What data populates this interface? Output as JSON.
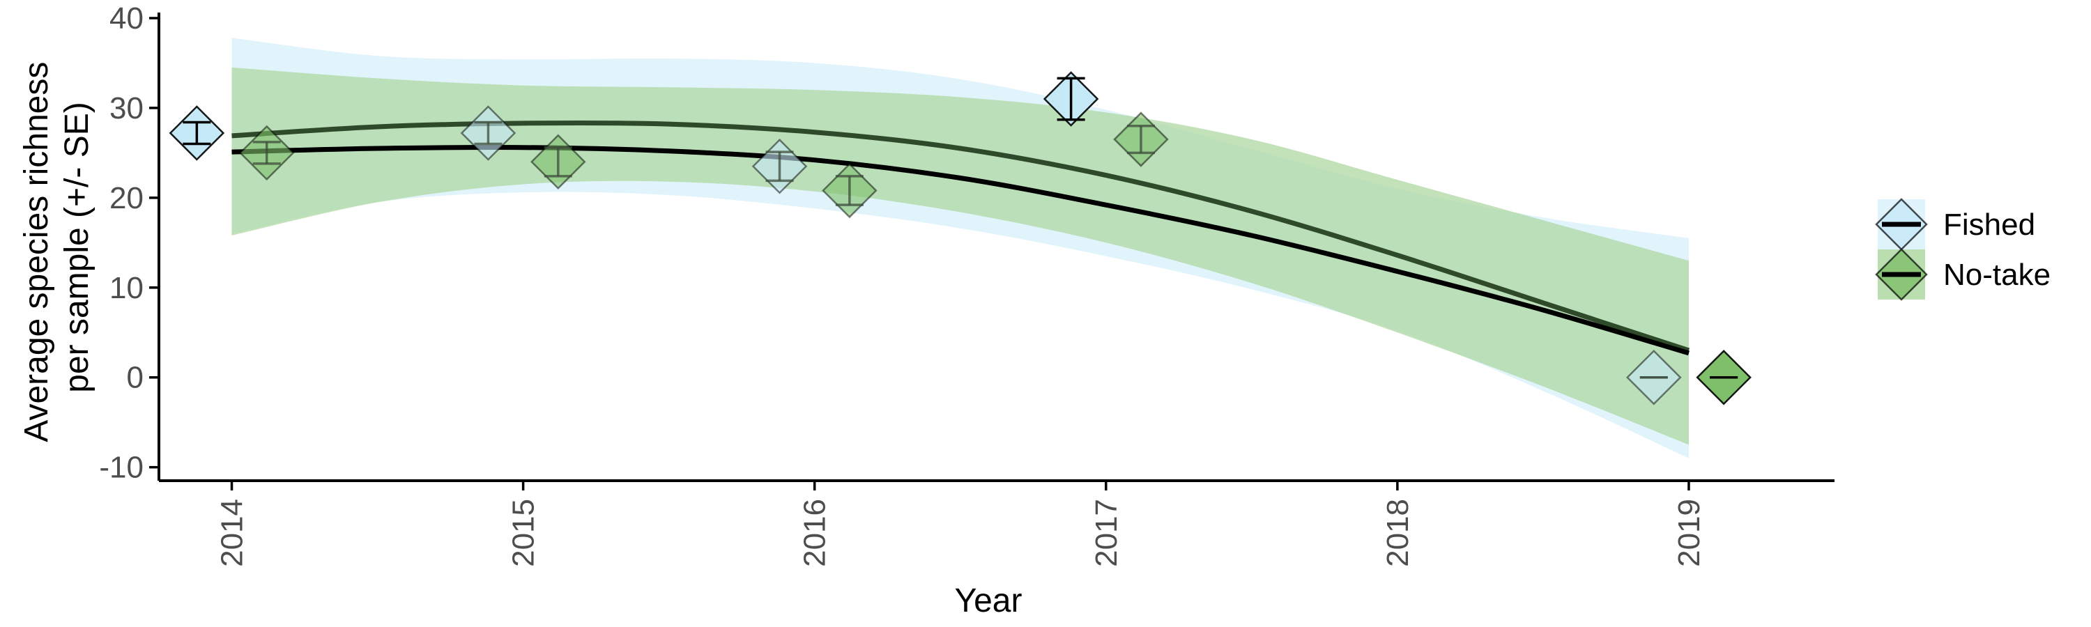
{
  "chart_data": {
    "type": "scatter",
    "xlabel": "Year",
    "ylabel_lines": [
      "Average species richness",
      "per sample (+/- SE)"
    ],
    "xlim": [
      2013.75,
      2019.5
    ],
    "ylim": [
      -11.5,
      40
    ],
    "x_ticks": [
      2014,
      2015,
      2016,
      2017,
      2018,
      2019
    ],
    "x_tick_labels": [
      "2014",
      "2015",
      "2016",
      "2017",
      "2018",
      "2019"
    ],
    "y_ticks": [
      -10,
      0,
      10,
      20,
      30,
      40
    ],
    "y_tick_labels": [
      "-10",
      "0",
      "10",
      "20",
      "30",
      "40"
    ],
    "grid": false,
    "legend_position": "right",
    "series": [
      {
        "name": "Fished",
        "color": "#c6e9f7",
        "band_color": "#d7f0fa",
        "line_color": "#000000",
        "points": [
          {
            "x": 2013.88,
            "y": 27.2,
            "se": 1.2
          },
          {
            "x": 2014.88,
            "y": 27.2,
            "se": 1.2
          },
          {
            "x": 2015.88,
            "y": 23.5,
            "se": 1.6
          },
          {
            "x": 2016.88,
            "y": 31.0,
            "se": 2.3
          },
          {
            "x": 2018.88,
            "y": 0.0,
            "se": 0.0
          }
        ],
        "fit": [
          {
            "x": 2014.0,
            "y": 25.1,
            "lower": 16.0,
            "upper": 37.8
          },
          {
            "x": 2014.5,
            "y": 25.5,
            "lower": 19.5,
            "upper": 35.8
          },
          {
            "x": 2015.0,
            "y": 25.6,
            "lower": 20.6,
            "upper": 35.4
          },
          {
            "x": 2015.5,
            "y": 25.2,
            "lower": 20.3,
            "upper": 35.5
          },
          {
            "x": 2016.0,
            "y": 24.2,
            "lower": 18.8,
            "upper": 35.0
          },
          {
            "x": 2016.5,
            "y": 22.2,
            "lower": 16.6,
            "upper": 33.2
          },
          {
            "x": 2017.0,
            "y": 19.2,
            "lower": 13.5,
            "upper": 29.8
          },
          {
            "x": 2017.5,
            "y": 15.8,
            "lower": 9.8,
            "upper": 25.4
          },
          {
            "x": 2018.0,
            "y": 11.8,
            "lower": 5.2,
            "upper": 21.0
          },
          {
            "x": 2018.5,
            "y": 7.5,
            "lower": -1.5,
            "upper": 17.8
          },
          {
            "x": 2019.0,
            "y": 2.7,
            "lower": -9.0,
            "upper": 15.5
          }
        ]
      },
      {
        "name": "No-take",
        "color": "#7fbf6a",
        "band_color": "#a9d69c",
        "line_color": "#2f4a2a",
        "points": [
          {
            "x": 2014.12,
            "y": 25.0,
            "se": 1.2
          },
          {
            "x": 2015.12,
            "y": 24.0,
            "se": 1.6
          },
          {
            "x": 2016.12,
            "y": 20.8,
            "se": 1.6
          },
          {
            "x": 2017.12,
            "y": 26.5,
            "se": 1.5
          },
          {
            "x": 2019.12,
            "y": 0.0,
            "se": 0.0
          }
        ],
        "fit": [
          {
            "x": 2014.0,
            "y": 26.9,
            "lower": 15.8,
            "upper": 34.5
          },
          {
            "x": 2014.5,
            "y": 27.9,
            "lower": 19.5,
            "upper": 33.3
          },
          {
            "x": 2015.0,
            "y": 28.3,
            "lower": 21.5,
            "upper": 32.5
          },
          {
            "x": 2015.5,
            "y": 28.2,
            "lower": 21.8,
            "upper": 32.3
          },
          {
            "x": 2016.0,
            "y": 27.3,
            "lower": 20.7,
            "upper": 32.0
          },
          {
            "x": 2016.5,
            "y": 25.5,
            "lower": 18.4,
            "upper": 31.2
          },
          {
            "x": 2017.0,
            "y": 22.5,
            "lower": 15.0,
            "upper": 29.5
          },
          {
            "x": 2017.5,
            "y": 18.5,
            "lower": 10.5,
            "upper": 26.5
          },
          {
            "x": 2018.0,
            "y": 13.6,
            "lower": 5.0,
            "upper": 22.0
          },
          {
            "x": 2018.5,
            "y": 8.3,
            "lower": -1.0,
            "upper": 17.5
          },
          {
            "x": 2019.0,
            "y": 3.0,
            "lower": -7.5,
            "upper": 13.0
          }
        ]
      }
    ]
  }
}
